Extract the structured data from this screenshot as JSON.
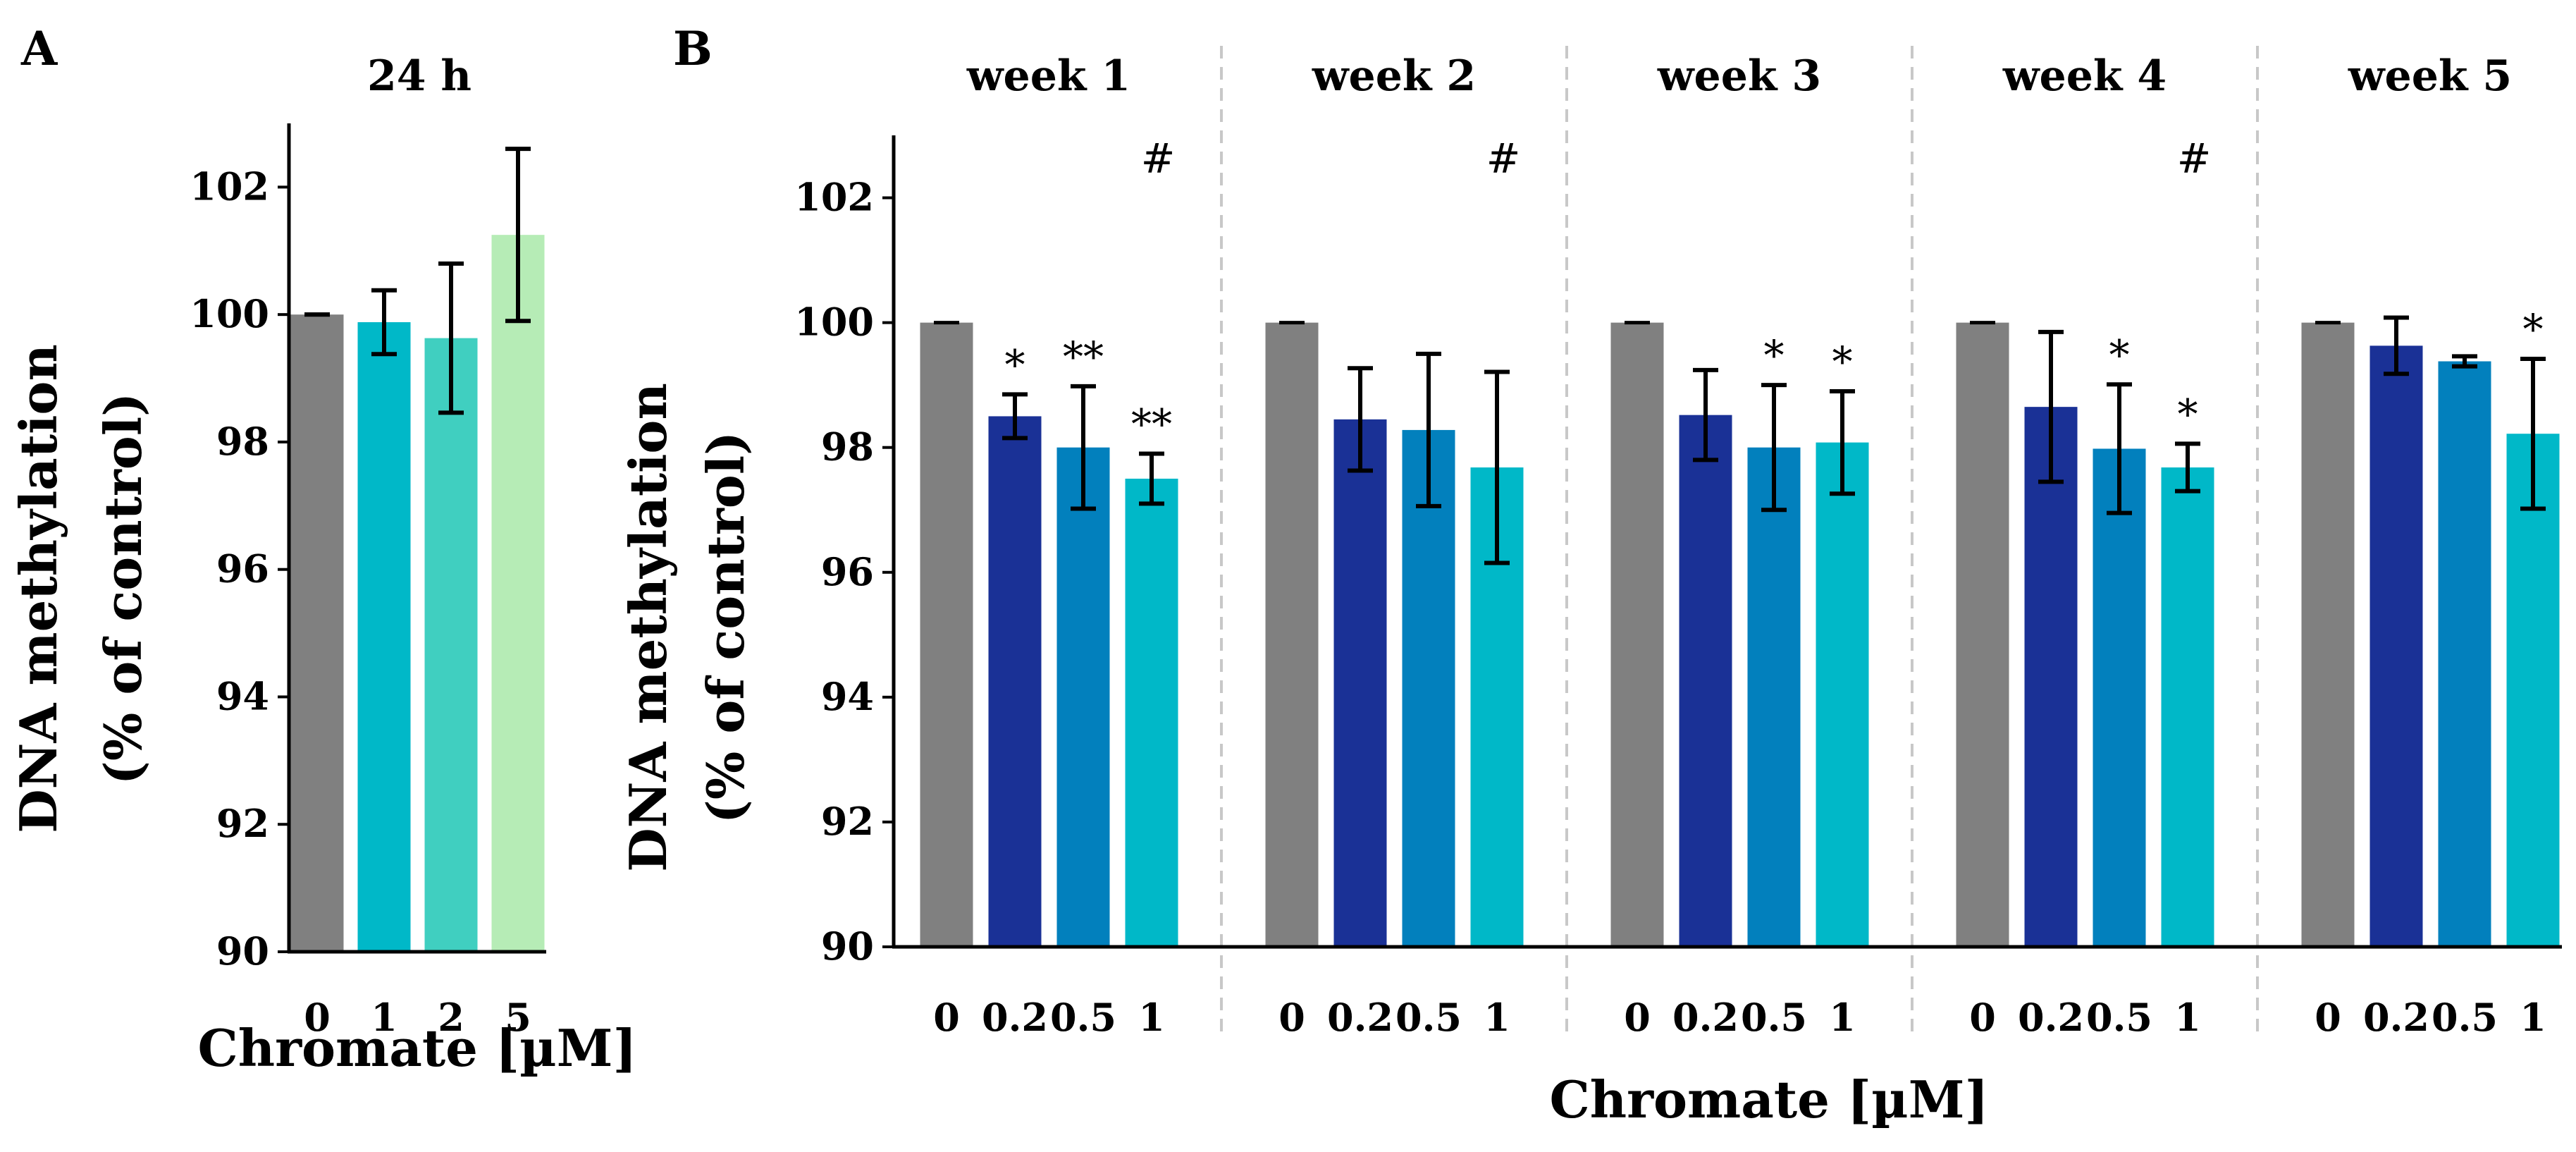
{
  "chart_data": [
    {
      "type": "bar",
      "panel": "A",
      "title": "24 h",
      "xlabel": "Chromate [µM]",
      "ylabel_line1": "DNA methylation",
      "ylabel_line2": "(% of control)",
      "ylim": [
        90,
        103
      ],
      "yticks": [
        "90",
        "92",
        "94",
        "96",
        "98",
        "100",
        "102"
      ],
      "categories": [
        "0",
        "1",
        "2",
        "5"
      ],
      "values": [
        100.0,
        99.88,
        99.63,
        101.25
      ],
      "errors": [
        0.0,
        0.5,
        1.17,
        1.35
      ],
      "colors": [
        "#808080",
        "#00b8c8",
        "#40cfc0",
        "#b6ecb6"
      ]
    },
    {
      "type": "bar",
      "panel": "B",
      "xlabel": "Chromate [µM]",
      "ylabel_line1": "DNA methylation",
      "ylabel_line2": "(% of control)",
      "ylim": [
        90,
        103
      ],
      "yticks": [
        "90",
        "92",
        "94",
        "96",
        "98",
        "100",
        "102"
      ],
      "colors": [
        "#808080",
        "#1a3196",
        "#0280bd",
        "#00b8c8"
      ],
      "groups": [
        {
          "title": "week 1",
          "hash": "#",
          "categories": [
            "0",
            "0.2",
            "0.5",
            "1"
          ],
          "values": [
            100.0,
            98.5,
            98.0,
            97.5
          ],
          "errors": [
            0.0,
            0.35,
            0.98,
            0.4
          ],
          "significance": [
            "",
            "*",
            "**",
            "**"
          ]
        },
        {
          "title": "week 2",
          "hash": "#",
          "categories": [
            "0",
            "0.2",
            "0.5",
            "1"
          ],
          "values": [
            100.0,
            98.45,
            98.28,
            97.68
          ],
          "errors": [
            0.0,
            0.82,
            1.22,
            1.53
          ],
          "significance": [
            "",
            "",
            "",
            ""
          ]
        },
        {
          "title": "week 3",
          "hash": "",
          "categories": [
            "0",
            "0.2",
            "0.5",
            "1"
          ],
          "values": [
            100.0,
            98.52,
            98.0,
            98.08
          ],
          "errors": [
            0.0,
            0.72,
            1.0,
            0.82
          ],
          "significance": [
            "",
            "",
            "*",
            "*"
          ]
        },
        {
          "title": "week 4",
          "hash": "#",
          "categories": [
            "0",
            "0.2",
            "0.5",
            "1"
          ],
          "values": [
            100.0,
            98.65,
            97.98,
            97.68
          ],
          "errors": [
            0.0,
            1.2,
            1.03,
            0.38
          ],
          "significance": [
            "",
            "",
            "*",
            "*"
          ]
        },
        {
          "title": "week 5",
          "hash": "",
          "categories": [
            "0",
            "0.2",
            "0.5",
            "1"
          ],
          "values": [
            100.0,
            99.63,
            99.38,
            98.22
          ],
          "errors": [
            0.0,
            0.45,
            0.08,
            1.2
          ],
          "significance": [
            "",
            "",
            "",
            "*"
          ]
        }
      ]
    }
  ]
}
